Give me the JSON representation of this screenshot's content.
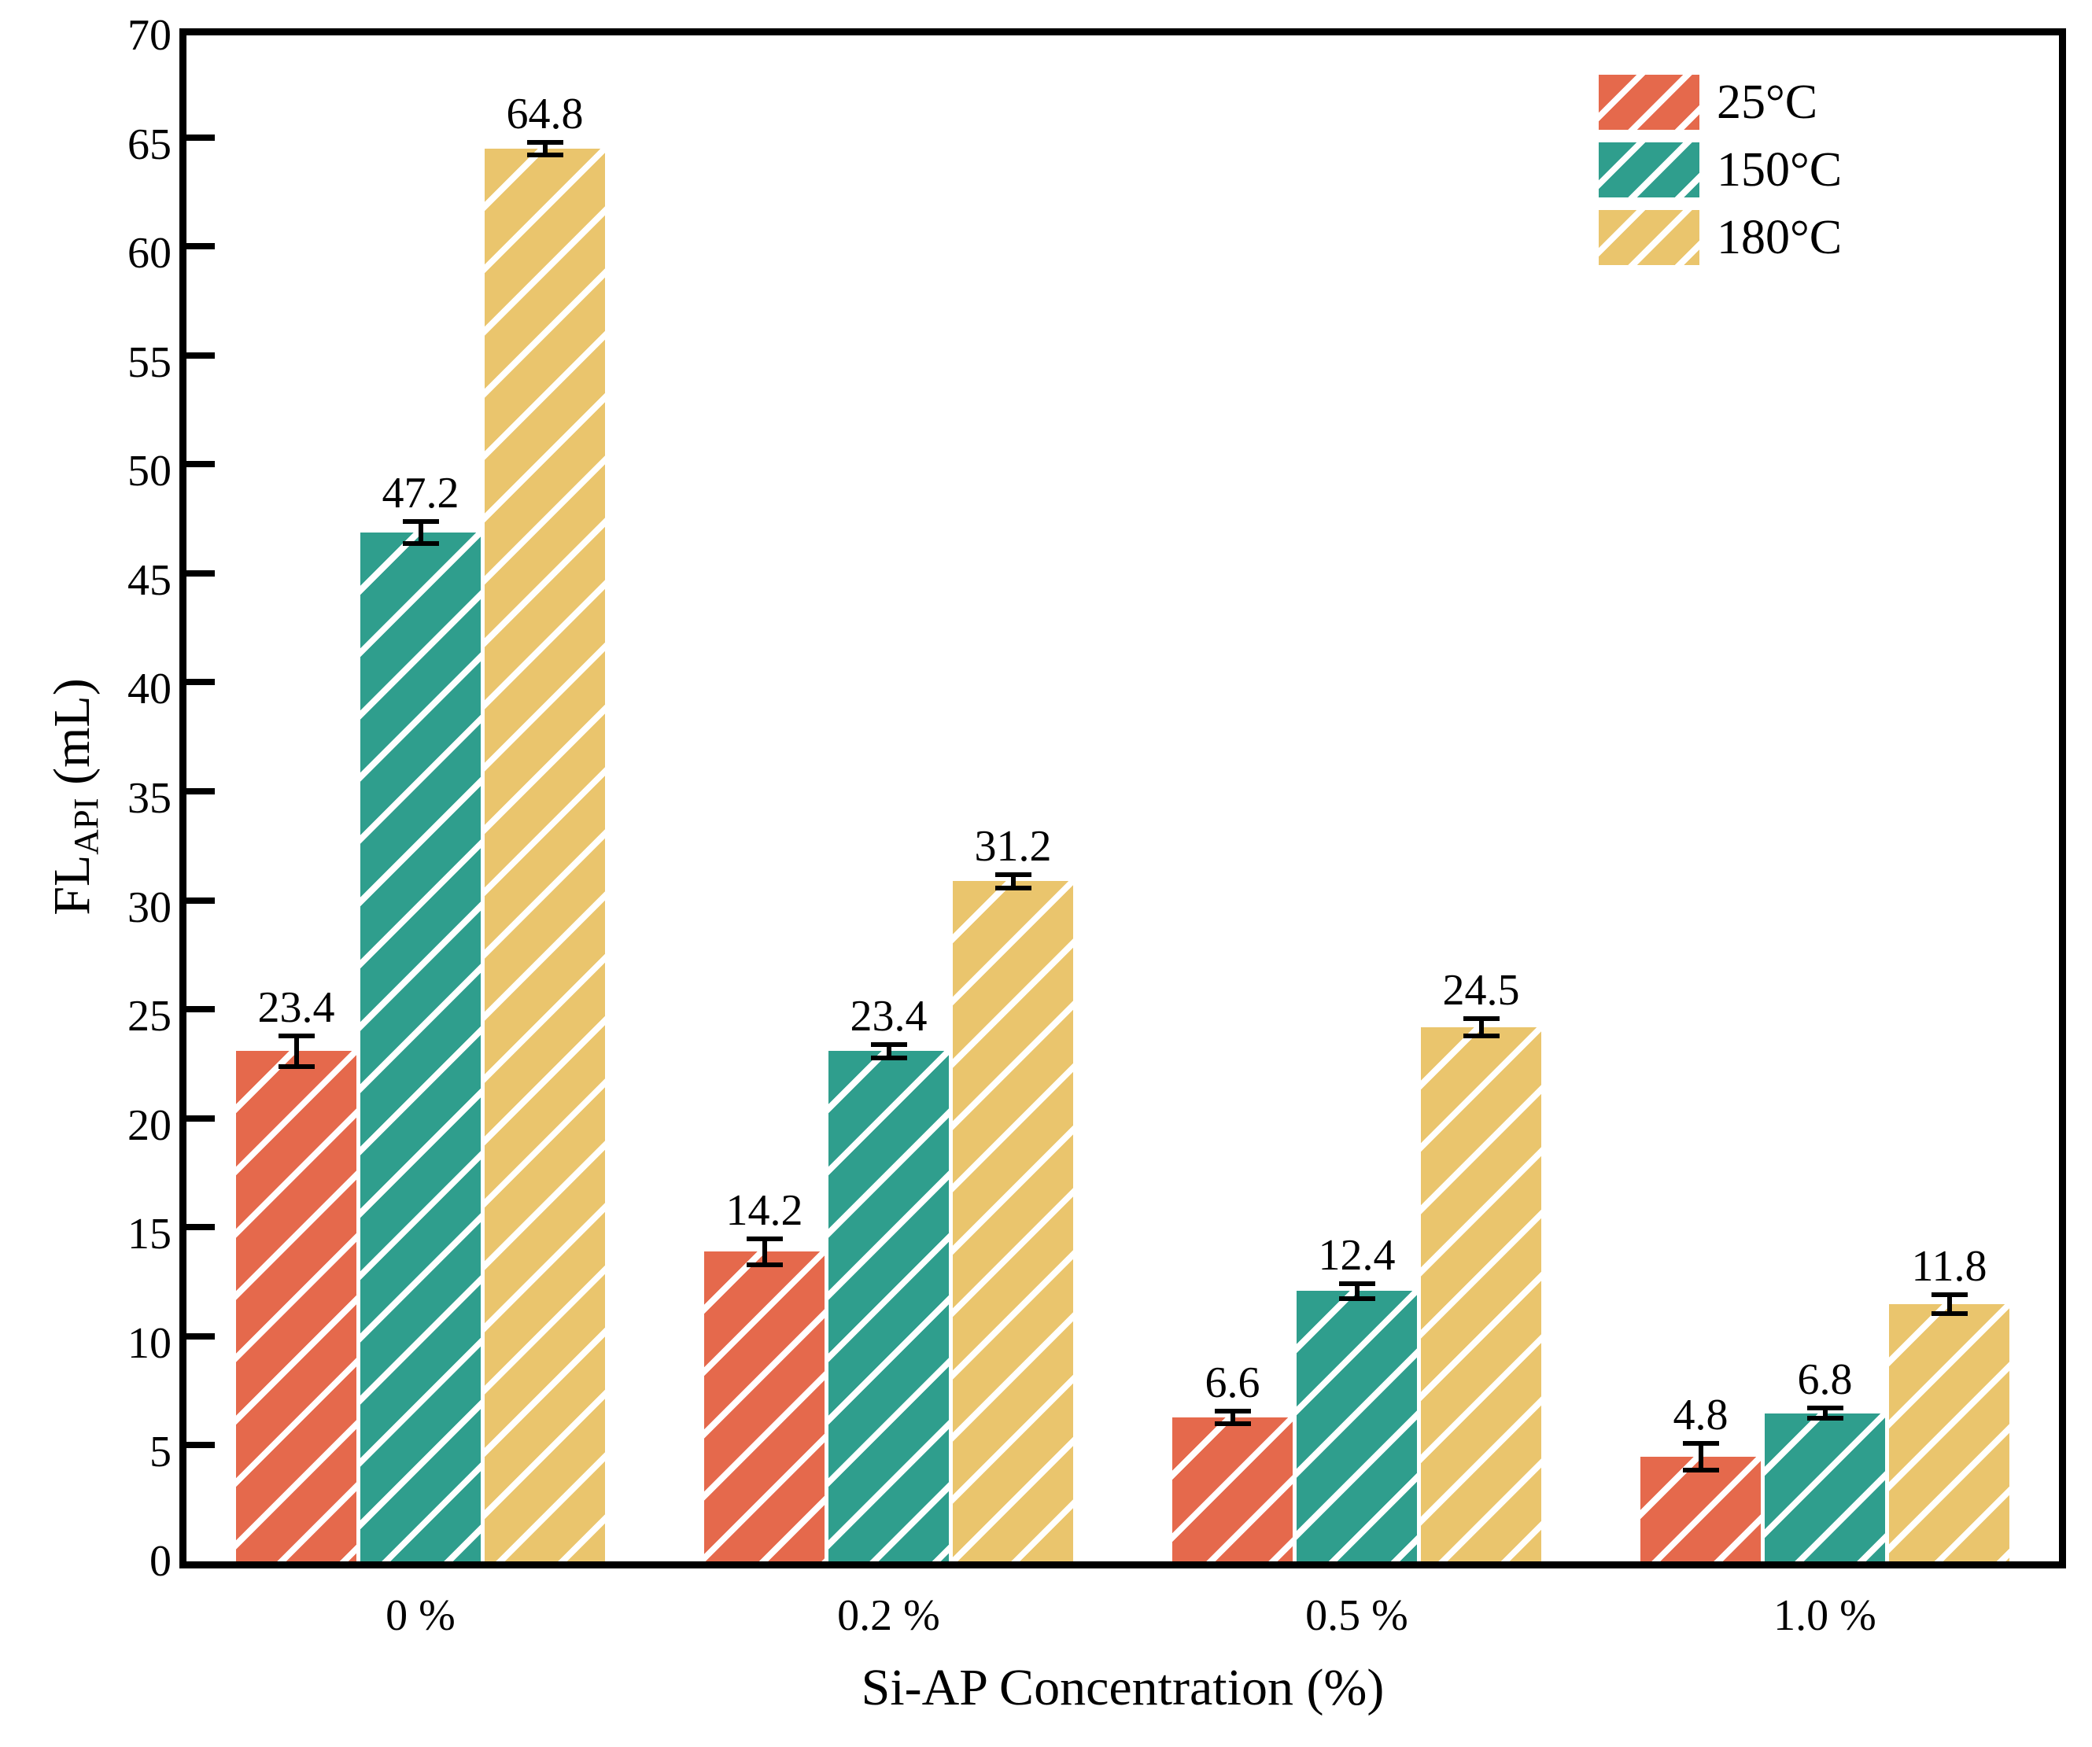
{
  "chart_data": {
    "type": "bar",
    "title": "",
    "xlabel": "Si-AP Concentration (%)",
    "ylabel_parts": {
      "main": "FL",
      "sub": "API",
      "rest": " (mL)"
    },
    "categories": [
      "0 %",
      "0.2 %",
      "0.5 %",
      "1.0 %"
    ],
    "series": [
      {
        "name": "25°C",
        "color": "#E5694C",
        "values": [
          23.4,
          14.2,
          6.6,
          4.8
        ],
        "errors": [
          0.7,
          0.6,
          0.3,
          0.6
        ]
      },
      {
        "name": "150°C",
        "color": "#2F9E8D",
        "values": [
          47.2,
          23.4,
          12.4,
          6.8
        ],
        "errors": [
          0.5,
          0.3,
          0.35,
          0.25
        ]
      },
      {
        "name": "180°C",
        "color": "#EAC56D",
        "values": [
          64.8,
          31.2,
          24.5,
          11.8
        ],
        "errors": [
          0.3,
          0.3,
          0.4,
          0.45
        ]
      }
    ],
    "bar_value_labels": [
      [
        "23.4",
        "14.2",
        "6.6",
        "4.8"
      ],
      [
        "47.2",
        "23.4",
        "12.4",
        "6.8"
      ],
      [
        "64.8",
        "31.2",
        "24.5",
        "11.8"
      ]
    ],
    "ylim": [
      0,
      70
    ],
    "ytick_step": 5,
    "ytick_labels": [
      "0",
      "5",
      "10",
      "15",
      "20",
      "25",
      "30",
      "35",
      "40",
      "45",
      "50",
      "55",
      "60",
      "65",
      "70"
    ],
    "hatch": "/",
    "hatch_color": "#ffffff",
    "grid": false,
    "legend_position": "top-right",
    "axis_color": "#000000"
  }
}
